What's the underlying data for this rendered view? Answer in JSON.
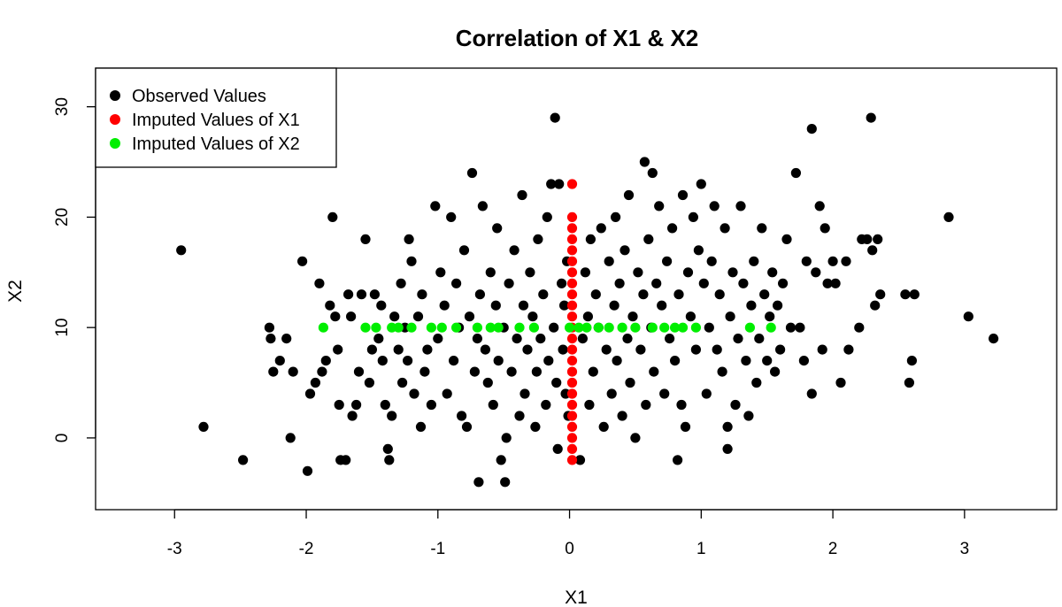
{
  "chart_data": {
    "type": "scatter",
    "title": "Correlation of X1 & X2",
    "xlabel": "X1",
    "ylabel": "X2",
    "xlim": [
      -3.6,
      3.7
    ],
    "ylim": [
      -6.5,
      33.5
    ],
    "x_ticks": [
      -3,
      -2,
      -1,
      0,
      1,
      2,
      3
    ],
    "y_ticks": [
      0,
      10,
      20,
      30
    ],
    "x_tick_labels": [
      "-3",
      "-2",
      "-1",
      "0",
      "1",
      "2",
      "3"
    ],
    "y_tick_labels": [
      "0",
      "10",
      "20",
      "30"
    ],
    "grid": false,
    "legend_position": "top-left",
    "series": [
      {
        "name": "Observed Values",
        "color": "#000000",
        "points": [
          [
            -2.95,
            17
          ],
          [
            -2.78,
            1
          ],
          [
            -2.48,
            -2
          ],
          [
            -2.28,
            10
          ],
          [
            -2.27,
            9
          ],
          [
            -2.25,
            6
          ],
          [
            -2.2,
            7
          ],
          [
            -2.15,
            9
          ],
          [
            -2.12,
            0
          ],
          [
            -2.1,
            6
          ],
          [
            -2.03,
            16
          ],
          [
            -1.99,
            -3
          ],
          [
            -1.97,
            4
          ],
          [
            -1.93,
            5
          ],
          [
            -1.9,
            14
          ],
          [
            -1.88,
            6
          ],
          [
            -1.85,
            7
          ],
          [
            -1.82,
            12
          ],
          [
            -1.8,
            20
          ],
          [
            -1.78,
            11
          ],
          [
            -1.76,
            8
          ],
          [
            -1.75,
            3
          ],
          [
            -1.74,
            -2
          ],
          [
            -1.7,
            -2
          ],
          [
            -1.68,
            13
          ],
          [
            -1.66,
            11
          ],
          [
            -1.65,
            2
          ],
          [
            -1.62,
            3
          ],
          [
            -1.6,
            6
          ],
          [
            -1.58,
            13
          ],
          [
            -1.55,
            18
          ],
          [
            -1.52,
            5
          ],
          [
            -1.5,
            8
          ],
          [
            -1.48,
            13
          ],
          [
            -1.45,
            9
          ],
          [
            -1.43,
            12
          ],
          [
            -1.42,
            7
          ],
          [
            -1.4,
            3
          ],
          [
            -1.38,
            -1
          ],
          [
            -1.37,
            -2
          ],
          [
            -1.35,
            2
          ],
          [
            -1.33,
            11
          ],
          [
            -1.3,
            8
          ],
          [
            -1.28,
            14
          ],
          [
            -1.27,
            5
          ],
          [
            -1.25,
            10
          ],
          [
            -1.23,
            7
          ],
          [
            -1.22,
            18
          ],
          [
            -1.2,
            16
          ],
          [
            -1.18,
            4
          ],
          [
            -1.15,
            11
          ],
          [
            -1.13,
            1
          ],
          [
            -1.12,
            13
          ],
          [
            -1.1,
            6
          ],
          [
            -1.08,
            8
          ],
          [
            -1.05,
            3
          ],
          [
            -1.02,
            21
          ],
          [
            -1.0,
            9
          ],
          [
            -0.98,
            15
          ],
          [
            -0.95,
            12
          ],
          [
            -0.93,
            4
          ],
          [
            -0.9,
            20
          ],
          [
            -0.88,
            7
          ],
          [
            -0.86,
            14
          ],
          [
            -0.84,
            10
          ],
          [
            -0.82,
            2
          ],
          [
            -0.8,
            17
          ],
          [
            -0.78,
            1
          ],
          [
            -0.76,
            11
          ],
          [
            -0.74,
            24
          ],
          [
            -0.72,
            6
          ],
          [
            -0.7,
            9
          ],
          [
            -0.69,
            -4
          ],
          [
            -0.68,
            13
          ],
          [
            -0.66,
            21
          ],
          [
            -0.64,
            8
          ],
          [
            -0.62,
            5
          ],
          [
            -0.6,
            15
          ],
          [
            -0.58,
            3
          ],
          [
            -0.56,
            12
          ],
          [
            -0.55,
            19
          ],
          [
            -0.54,
            7
          ],
          [
            -0.52,
            -2
          ],
          [
            -0.5,
            10
          ],
          [
            -0.49,
            -4
          ],
          [
            -0.48,
            0
          ],
          [
            -0.46,
            14
          ],
          [
            -0.44,
            6
          ],
          [
            -0.42,
            17
          ],
          [
            -0.4,
            9
          ],
          [
            -0.38,
            2
          ],
          [
            -0.36,
            22
          ],
          [
            -0.35,
            12
          ],
          [
            -0.34,
            4
          ],
          [
            -0.32,
            8
          ],
          [
            -0.3,
            15
          ],
          [
            -0.28,
            11
          ],
          [
            -0.26,
            1
          ],
          [
            -0.25,
            6
          ],
          [
            -0.24,
            18
          ],
          [
            -0.22,
            9
          ],
          [
            -0.2,
            13
          ],
          [
            -0.18,
            3
          ],
          [
            -0.17,
            20
          ],
          [
            -0.16,
            7
          ],
          [
            -0.14,
            23
          ],
          [
            -0.12,
            10
          ],
          [
            -0.11,
            29
          ],
          [
            -0.1,
            5
          ],
          [
            -0.09,
            -1
          ],
          [
            -0.08,
            23
          ],
          [
            -0.06,
            14
          ],
          [
            -0.05,
            8
          ],
          [
            -0.04,
            12
          ],
          [
            -0.03,
            4
          ],
          [
            -0.02,
            16
          ],
          [
            -0.01,
            2
          ],
          [
            0.08,
            -2
          ],
          [
            0.1,
            9
          ],
          [
            0.12,
            15
          ],
          [
            0.14,
            11
          ],
          [
            0.15,
            3
          ],
          [
            0.16,
            18
          ],
          [
            0.18,
            6
          ],
          [
            0.2,
            13
          ],
          [
            0.22,
            10
          ],
          [
            0.24,
            19
          ],
          [
            0.26,
            1
          ],
          [
            0.28,
            8
          ],
          [
            0.3,
            16
          ],
          [
            0.32,
            4
          ],
          [
            0.34,
            12
          ],
          [
            0.35,
            20
          ],
          [
            0.36,
            7
          ],
          [
            0.38,
            14
          ],
          [
            0.4,
            2
          ],
          [
            0.42,
            17
          ],
          [
            0.44,
            9
          ],
          [
            0.45,
            22
          ],
          [
            0.46,
            5
          ],
          [
            0.48,
            11
          ],
          [
            0.5,
            0
          ],
          [
            0.52,
            15
          ],
          [
            0.54,
            8
          ],
          [
            0.56,
            13
          ],
          [
            0.57,
            25
          ],
          [
            0.58,
            3
          ],
          [
            0.6,
            18
          ],
          [
            0.62,
            10
          ],
          [
            0.63,
            24
          ],
          [
            0.64,
            6
          ],
          [
            0.66,
            14
          ],
          [
            0.68,
            21
          ],
          [
            0.7,
            12
          ],
          [
            0.72,
            4
          ],
          [
            0.74,
            16
          ],
          [
            0.76,
            9
          ],
          [
            0.78,
            19
          ],
          [
            0.8,
            7
          ],
          [
            0.82,
            -2
          ],
          [
            0.83,
            13
          ],
          [
            0.85,
            3
          ],
          [
            0.86,
            22
          ],
          [
            0.88,
            1
          ],
          [
            0.9,
            15
          ],
          [
            0.92,
            11
          ],
          [
            0.94,
            20
          ],
          [
            0.96,
            8
          ],
          [
            0.98,
            17
          ],
          [
            1.0,
            23
          ],
          [
            1.02,
            14
          ],
          [
            1.04,
            4
          ],
          [
            1.06,
            10
          ],
          [
            1.08,
            16
          ],
          [
            1.1,
            21
          ],
          [
            1.12,
            8
          ],
          [
            1.14,
            13
          ],
          [
            1.16,
            6
          ],
          [
            1.18,
            19
          ],
          [
            1.2,
            1
          ],
          [
            1.2,
            -1
          ],
          [
            1.22,
            11
          ],
          [
            1.24,
            15
          ],
          [
            1.26,
            3
          ],
          [
            1.28,
            9
          ],
          [
            1.3,
            21
          ],
          [
            1.32,
            14
          ],
          [
            1.34,
            7
          ],
          [
            1.36,
            2
          ],
          [
            1.38,
            12
          ],
          [
            1.4,
            16
          ],
          [
            1.42,
            5
          ],
          [
            1.44,
            9
          ],
          [
            1.46,
            19
          ],
          [
            1.48,
            13
          ],
          [
            1.5,
            7
          ],
          [
            1.52,
            11
          ],
          [
            1.54,
            15
          ],
          [
            1.56,
            6
          ],
          [
            1.58,
            12
          ],
          [
            1.6,
            8
          ],
          [
            1.62,
            14
          ],
          [
            1.65,
            18
          ],
          [
            1.68,
            10
          ],
          [
            1.72,
            24
          ],
          [
            1.75,
            10
          ],
          [
            1.78,
            7
          ],
          [
            1.8,
            16
          ],
          [
            1.84,
            28
          ],
          [
            1.84,
            4
          ],
          [
            1.87,
            15
          ],
          [
            1.9,
            21
          ],
          [
            1.92,
            8
          ],
          [
            1.94,
            19
          ],
          [
            1.96,
            14
          ],
          [
            2.0,
            16
          ],
          [
            2.02,
            14
          ],
          [
            2.06,
            5
          ],
          [
            2.1,
            16
          ],
          [
            2.12,
            8
          ],
          [
            2.2,
            10
          ],
          [
            2.22,
            18
          ],
          [
            2.26,
            18
          ],
          [
            2.29,
            29
          ],
          [
            2.3,
            17
          ],
          [
            2.32,
            12
          ],
          [
            2.34,
            18
          ],
          [
            2.36,
            13
          ],
          [
            2.55,
            13
          ],
          [
            2.58,
            5
          ],
          [
            2.6,
            7
          ],
          [
            2.62,
            13
          ],
          [
            2.88,
            20
          ],
          [
            3.03,
            11
          ],
          [
            3.22,
            9
          ]
        ]
      },
      {
        "name": "Imputed Values of X1",
        "color": "#ff0000",
        "points": [
          [
            0.02,
            23
          ],
          [
            0.02,
            20
          ],
          [
            0.02,
            19
          ],
          [
            0.02,
            18
          ],
          [
            0.02,
            17
          ],
          [
            0.02,
            16
          ],
          [
            0.02,
            15
          ],
          [
            0.02,
            14
          ],
          [
            0.02,
            13
          ],
          [
            0.02,
            12
          ],
          [
            0.02,
            11
          ],
          [
            0.02,
            10
          ],
          [
            0.02,
            9
          ],
          [
            0.02,
            8
          ],
          [
            0.02,
            7
          ],
          [
            0.02,
            6
          ],
          [
            0.02,
            5
          ],
          [
            0.02,
            4
          ],
          [
            0.02,
            3
          ],
          [
            0.02,
            2
          ],
          [
            0.02,
            1
          ],
          [
            0.02,
            0
          ],
          [
            0.02,
            -1
          ],
          [
            0.02,
            -2
          ]
        ]
      },
      {
        "name": "Imputed Values of X2",
        "color": "#00ee00",
        "points": [
          [
            -1.87,
            10
          ],
          [
            -1.55,
            10
          ],
          [
            -1.47,
            10
          ],
          [
            -1.35,
            10
          ],
          [
            -1.3,
            10
          ],
          [
            -1.2,
            10
          ],
          [
            -1.05,
            10
          ],
          [
            -0.97,
            10
          ],
          [
            -0.86,
            10
          ],
          [
            -0.7,
            10
          ],
          [
            -0.6,
            10
          ],
          [
            -0.54,
            10
          ],
          [
            -0.38,
            10
          ],
          [
            -0.27,
            10
          ],
          [
            0.0,
            10
          ],
          [
            0.07,
            10
          ],
          [
            0.13,
            10
          ],
          [
            0.22,
            10
          ],
          [
            0.3,
            10
          ],
          [
            0.4,
            10
          ],
          [
            0.5,
            10
          ],
          [
            0.63,
            10
          ],
          [
            0.72,
            10
          ],
          [
            0.8,
            10
          ],
          [
            0.86,
            10
          ],
          [
            0.96,
            10
          ],
          [
            1.37,
            10
          ],
          [
            1.53,
            10
          ]
        ]
      }
    ]
  }
}
